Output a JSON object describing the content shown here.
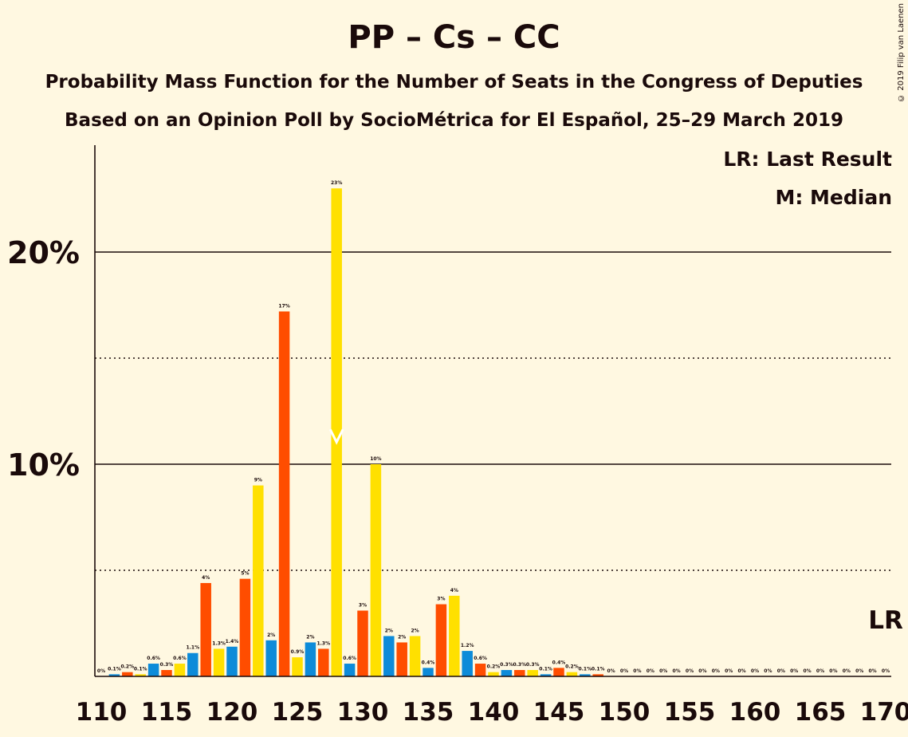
{
  "title": "PP – Cs – CC",
  "subtitle_1": "Probability Mass Function for the Number of Seats in the Congress of Deputies",
  "subtitle_2": "Based on an Opinion Poll by SocioMétrica for El Español, 25–29 March 2019",
  "copyright": "© 2019 Filip van Laenen",
  "legend": {
    "last_result": "LR: Last Result",
    "median": "M: Median"
  },
  "lr_marker_label": "LR",
  "colors": {
    "blue": "#0d8bd9",
    "orange": "#ff4d00",
    "yellow": "#ffe000",
    "background": "#fff8e1",
    "text": "#1a0a0a"
  },
  "chart_data": {
    "type": "bar",
    "x": [
      110,
      111,
      112,
      113,
      114,
      115,
      116,
      117,
      118,
      119,
      120,
      121,
      122,
      123,
      124,
      125,
      126,
      127,
      128,
      129,
      130,
      131,
      132,
      133,
      134,
      135,
      136,
      137,
      138,
      139,
      140,
      141,
      142,
      143,
      144,
      145,
      146,
      147,
      148,
      149,
      150,
      151,
      152,
      153,
      154,
      155,
      156,
      157,
      158,
      159,
      160,
      161,
      162,
      163,
      164,
      165,
      166,
      167,
      168,
      169,
      170
    ],
    "values": [
      0,
      0.1,
      0.2,
      0.1,
      0.6,
      0.3,
      0.6,
      1.1,
      4.4,
      1.3,
      1.4,
      4.6,
      9,
      1.7,
      17.2,
      0.9,
      1.6,
      1.3,
      23,
      0.6,
      3.1,
      10,
      1.9,
      1.6,
      1.9,
      0.4,
      3.4,
      3.8,
      1.2,
      0.6,
      0.2,
      0.3,
      0.3,
      0.3,
      0.1,
      0.4,
      0.2,
      0.1,
      0.1,
      0,
      0,
      0,
      0,
      0,
      0,
      0,
      0,
      0,
      0,
      0,
      0,
      0,
      0,
      0,
      0,
      0,
      0,
      0,
      0,
      0,
      0
    ],
    "labels": [
      "0%",
      "0.1%",
      "0.2%",
      "0.1%",
      "0.6%",
      "0.3%",
      "0.6%",
      "1.1%",
      "4%",
      "1.3%",
      "1.4%",
      "5%",
      "9%",
      "2%",
      "17%",
      "0.9%",
      "2%",
      "1.3%",
      "23%",
      "0.6%",
      "3%",
      "10%",
      "2%",
      "2%",
      "2%",
      "0.4%",
      "3%",
      "4%",
      "1.2%",
      "0.6%",
      "0.2%",
      "0.3%",
      "0.3%",
      "0.3%",
      "0.1%",
      "0.4%",
      "0.2%",
      "0.1%",
      "0.1%",
      "0%",
      "0%",
      "0%",
      "0%",
      "0%",
      "0%",
      "0%",
      "0%",
      "0%",
      "0%",
      "0%",
      "0%",
      "0%",
      "0%",
      "0%",
      "0%",
      "0%",
      "0%",
      "0%",
      "0%",
      "0%",
      "0%"
    ],
    "colors": [
      "blue",
      "blue",
      "orange",
      "yellow",
      "blue",
      "orange",
      "yellow",
      "blue",
      "orange",
      "yellow",
      "blue",
      "orange",
      "yellow",
      "blue",
      "orange",
      "yellow",
      "blue",
      "orange",
      "yellow",
      "blue",
      "orange",
      "yellow",
      "blue",
      "orange",
      "yellow",
      "blue",
      "orange",
      "yellow",
      "blue",
      "orange",
      "yellow",
      "blue",
      "orange",
      "yellow",
      "blue",
      "orange",
      "yellow",
      "blue",
      "orange",
      "yellow",
      "blue",
      "orange",
      "yellow",
      "blue",
      "orange",
      "yellow",
      "blue",
      "orange",
      "yellow",
      "blue",
      "orange",
      "yellow",
      "blue",
      "orange",
      "yellow",
      "blue",
      "orange",
      "yellow",
      "blue",
      "orange",
      "yellow"
    ],
    "x_ticks": [
      110,
      115,
      120,
      125,
      130,
      135,
      140,
      145,
      150,
      155,
      160,
      165,
      170
    ],
    "y_ticks": [
      {
        "value": 10,
        "label": "10%"
      },
      {
        "value": 20,
        "label": "20%"
      }
    ],
    "y_dotted_lines": [
      5,
      15
    ],
    "median": 128,
    "last_result": 170,
    "ylim": [
      0,
      25
    ],
    "xlim": [
      110,
      170
    ]
  }
}
